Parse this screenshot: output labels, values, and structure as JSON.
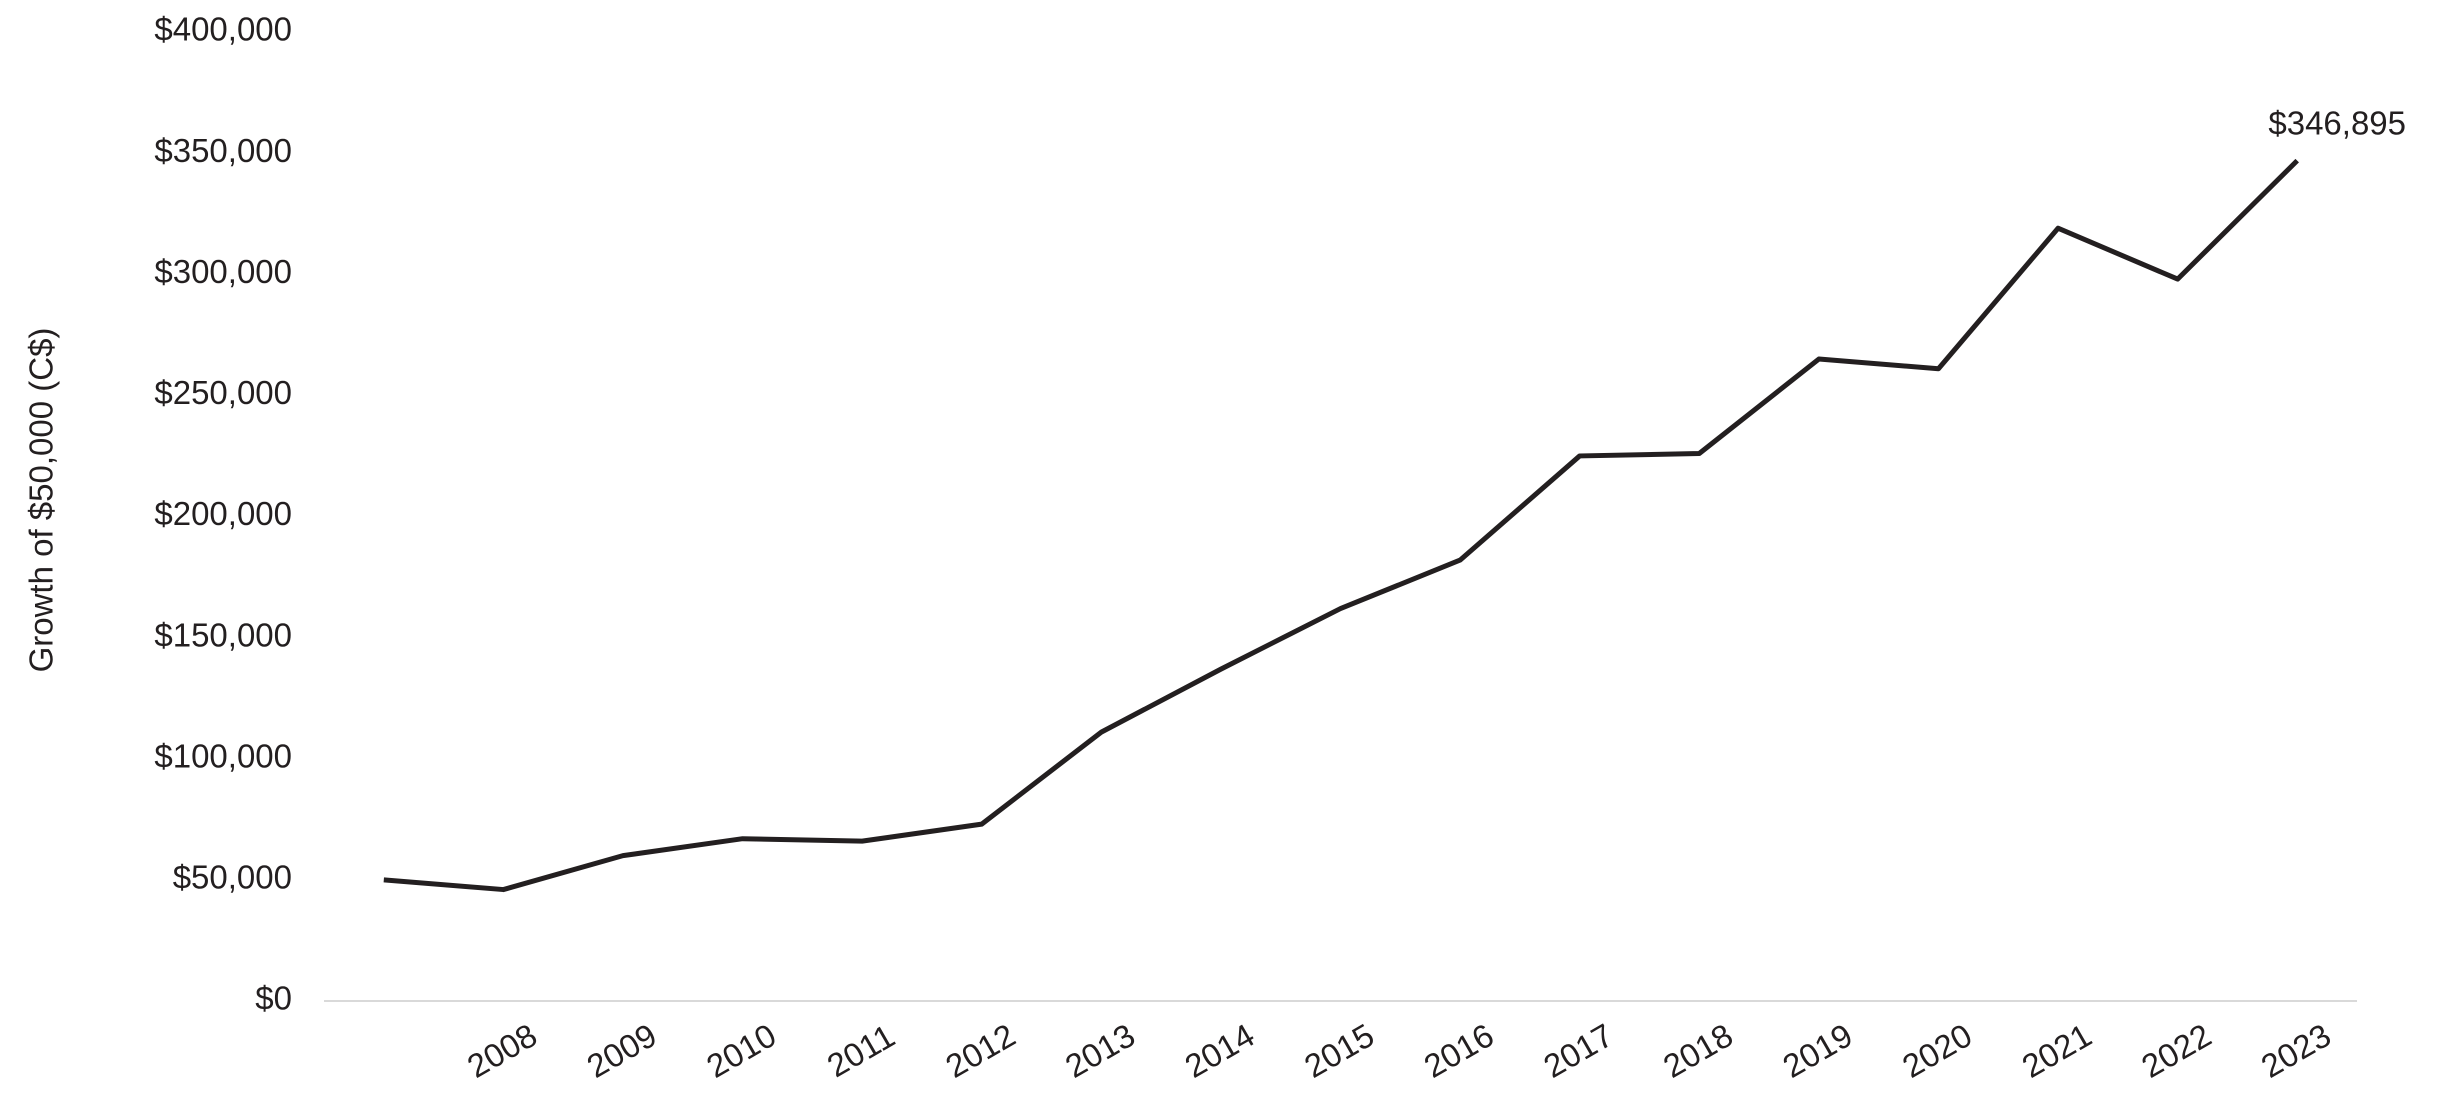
{
  "chart_data": {
    "type": "line",
    "y_axis_label": "Growth of $50,000 (C$)",
    "categories": [
      null,
      "2008",
      "2009",
      "2010",
      "2011",
      "2012",
      "2013",
      "2014",
      "2015",
      "2016",
      "2017",
      "2018",
      "2019",
      "2020",
      "2021",
      "2022",
      "2023"
    ],
    "series": [
      {
        "name": "Growth of $50,000",
        "color": "#231f20",
        "values": [
          50000,
          46000,
          60000,
          67000,
          66000,
          73000,
          111000,
          137000,
          162000,
          182000,
          225000,
          226000,
          265000,
          261000,
          319000,
          298000,
          346895
        ],
        "value_labels": [
          null,
          null,
          null,
          null,
          null,
          null,
          null,
          null,
          null,
          null,
          null,
          null,
          null,
          null,
          null,
          null,
          "$346,895"
        ]
      }
    ],
    "ylim": [
      0,
      400000
    ],
    "yticks": [
      {
        "value": 0,
        "label": "$0"
      },
      {
        "value": 50000,
        "label": "$50,000"
      },
      {
        "value": 100000,
        "label": "$100,000"
      },
      {
        "value": 150000,
        "label": "$150,000"
      },
      {
        "value": 200000,
        "label": "$200,000"
      },
      {
        "value": 250000,
        "label": "$250,000"
      },
      {
        "value": 300000,
        "label": "$300,000"
      },
      {
        "value": 350000,
        "label": "$350,000"
      },
      {
        "value": 400000,
        "label": "$400,000"
      }
    ],
    "grid": false
  }
}
